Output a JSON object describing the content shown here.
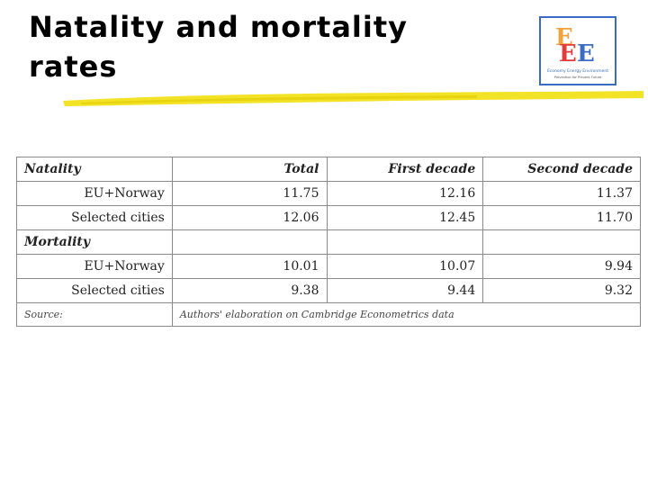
{
  "slide": {
    "title": "Natality and mortality rates"
  },
  "logo": {
    "line1": "Economy Energy Environment",
    "line2": "Prevention for Prevent Future",
    "colors": [
      "#f2a23a",
      "#e23b3b",
      "#3b6cc4"
    ]
  },
  "table": {
    "headers": [
      "Natality",
      "Total",
      "First decade",
      "Second decade"
    ],
    "natality_rows": [
      {
        "label": "EU+Norway",
        "total": "11.75",
        "first": "12.16",
        "second": "11.37"
      },
      {
        "label": "Selected cities",
        "total": "12.06",
        "first": "12.45",
        "second": "11.70"
      }
    ],
    "mortality_label": "Mortality",
    "mortality_rows": [
      {
        "label": "EU+Norway",
        "total": "10.01",
        "first": "10.07",
        "second": "9.94"
      },
      {
        "label": "Selected cities",
        "total": "9.38",
        "first": "9.44",
        "second": "9.32"
      }
    ],
    "source_label": "Source:",
    "source_text": "Authors' elaboration on Cambridge Econometrics data"
  },
  "colors": {
    "brush": "#f2e21a",
    "border": "#8a8a8a"
  }
}
